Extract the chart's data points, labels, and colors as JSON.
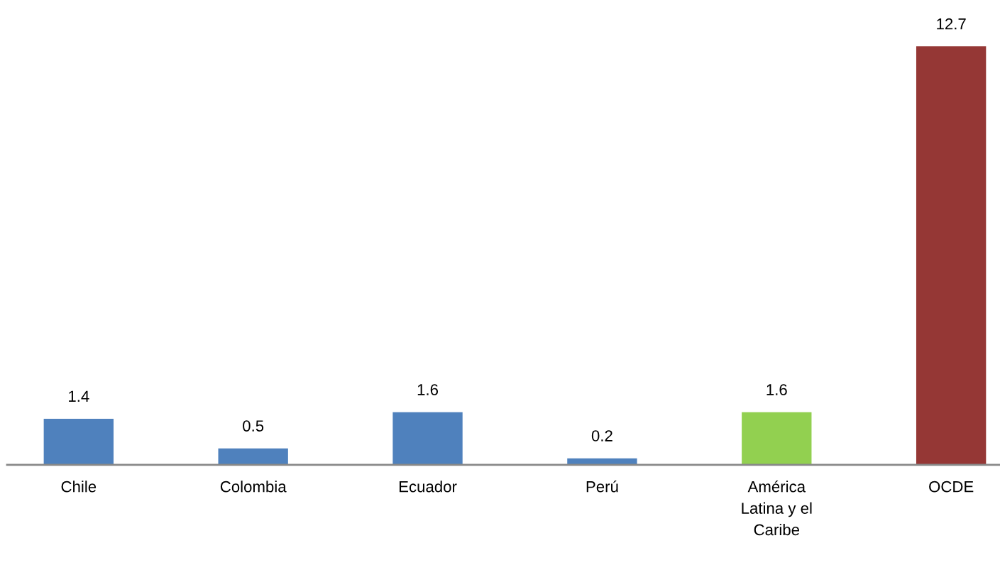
{
  "chart_data": {
    "type": "bar",
    "categories": [
      "Chile",
      "Colombia",
      "Ecuador",
      "Perú",
      "América\nLatina y el\nCaribe",
      "OCDE"
    ],
    "values": [
      1.4,
      0.5,
      1.6,
      0.2,
      1.6,
      12.7
    ],
    "colors": [
      "#4f81bd",
      "#4f81bd",
      "#4f81bd",
      "#4f81bd",
      "#92d050",
      "#953735"
    ],
    "data_labels": true,
    "grid": false,
    "legend": false
  }
}
